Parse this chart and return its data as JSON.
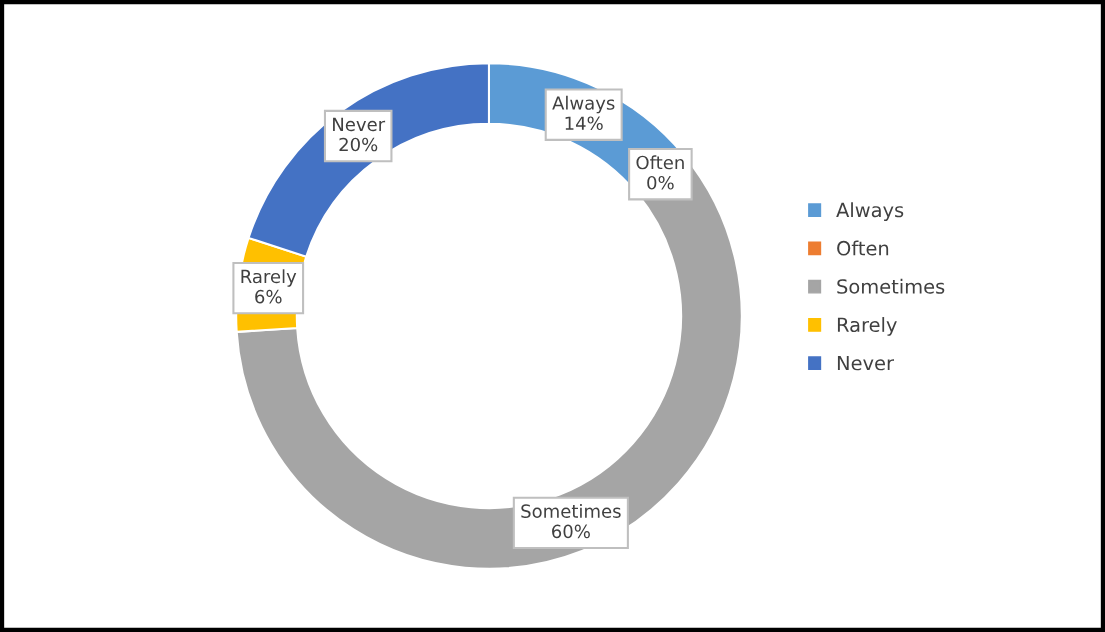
{
  "chart_data": {
    "type": "donut",
    "categories": [
      "Always",
      "Often",
      "Sometimes",
      "Rarely",
      "Never"
    ],
    "values": [
      14,
      0,
      60,
      6,
      20
    ],
    "colors": [
      "#5b9bd5",
      "#ed7d31",
      "#a5a5a5",
      "#ffc000",
      "#4472c4"
    ],
    "value_labels": [
      "14%",
      "0%",
      "60%",
      "6%",
      "20%"
    ],
    "legend": "right"
  }
}
